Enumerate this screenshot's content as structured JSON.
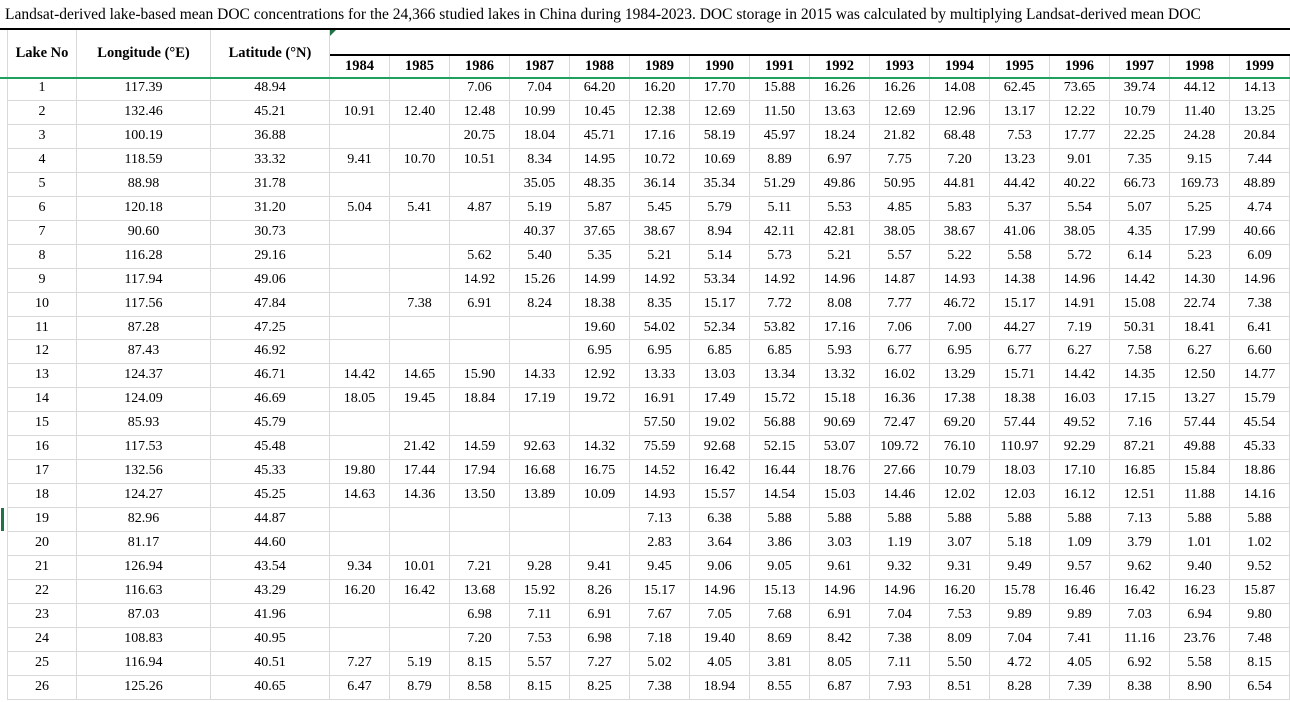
{
  "caption": "Landsat-derived lake-based mean DOC concentrations for the 24,366 studied lakes in China during 1984-2023. DOC storage in 2015 was calculated by multiplying Landsat-derived mean DOC",
  "columns": {
    "lake_no": "Lake No",
    "longitude": "Longitude (°E)",
    "latitude": "Latitude (°N)"
  },
  "years": [
    "1984",
    "1985",
    "1986",
    "1987",
    "1988",
    "1989",
    "1990",
    "1991",
    "1992",
    "1993",
    "1994",
    "1995",
    "1996",
    "1997",
    "1998",
    "1999"
  ],
  "marked_row_no": "19",
  "colors": {
    "header_separator_green": "#1FA05F",
    "row_marker_green": "#217346",
    "corner_flag_green": "#217346",
    "grid_line": "#D9D9D9",
    "rule_black": "#000000"
  },
  "rows": [
    {
      "no": "1",
      "lon": "117.39",
      "lat": "48.94",
      "values": [
        "",
        "",
        "7.06",
        "7.04",
        "64.20",
        "16.20",
        "17.70",
        "15.88",
        "16.26",
        "16.26",
        "14.08",
        "62.45",
        "73.65",
        "39.74",
        "44.12",
        "14.13"
      ]
    },
    {
      "no": "2",
      "lon": "132.46",
      "lat": "45.21",
      "values": [
        "10.91",
        "12.40",
        "12.48",
        "10.99",
        "10.45",
        "12.38",
        "12.69",
        "11.50",
        "13.63",
        "12.69",
        "12.96",
        "13.17",
        "12.22",
        "10.79",
        "11.40",
        "13.25"
      ]
    },
    {
      "no": "3",
      "lon": "100.19",
      "lat": "36.88",
      "values": [
        "",
        "",
        "20.75",
        "18.04",
        "45.71",
        "17.16",
        "58.19",
        "45.97",
        "18.24",
        "21.82",
        "68.48",
        "7.53",
        "17.77",
        "22.25",
        "24.28",
        "20.84"
      ]
    },
    {
      "no": "4",
      "lon": "118.59",
      "lat": "33.32",
      "values": [
        "9.41",
        "10.70",
        "10.51",
        "8.34",
        "14.95",
        "10.72",
        "10.69",
        "8.89",
        "6.97",
        "7.75",
        "7.20",
        "13.23",
        "9.01",
        "7.35",
        "9.15",
        "7.44"
      ]
    },
    {
      "no": "5",
      "lon": "88.98",
      "lat": "31.78",
      "values": [
        "",
        "",
        "",
        "35.05",
        "48.35",
        "36.14",
        "35.34",
        "51.29",
        "49.86",
        "50.95",
        "44.81",
        "44.42",
        "40.22",
        "66.73",
        "169.73",
        "48.89"
      ]
    },
    {
      "no": "6",
      "lon": "120.18",
      "lat": "31.20",
      "values": [
        "5.04",
        "5.41",
        "4.87",
        "5.19",
        "5.87",
        "5.45",
        "5.79",
        "5.11",
        "5.53",
        "4.85",
        "5.83",
        "5.37",
        "5.54",
        "5.07",
        "5.25",
        "4.74"
      ]
    },
    {
      "no": "7",
      "lon": "90.60",
      "lat": "30.73",
      "values": [
        "",
        "",
        "",
        "40.37",
        "37.65",
        "38.67",
        "8.94",
        "42.11",
        "42.81",
        "38.05",
        "38.67",
        "41.06",
        "38.05",
        "4.35",
        "17.99",
        "40.66"
      ]
    },
    {
      "no": "8",
      "lon": "116.28",
      "lat": "29.16",
      "values": [
        "",
        "",
        "5.62",
        "5.40",
        "5.35",
        "5.21",
        "5.14",
        "5.73",
        "5.21",
        "5.57",
        "5.22",
        "5.58",
        "5.72",
        "6.14",
        "5.23",
        "6.09"
      ]
    },
    {
      "no": "9",
      "lon": "117.94",
      "lat": "49.06",
      "values": [
        "",
        "",
        "14.92",
        "15.26",
        "14.99",
        "14.92",
        "53.34",
        "14.92",
        "14.96",
        "14.87",
        "14.93",
        "14.38",
        "14.96",
        "14.42",
        "14.30",
        "14.96"
      ]
    },
    {
      "no": "10",
      "lon": "117.56",
      "lat": "47.84",
      "values": [
        "",
        "7.38",
        "6.91",
        "8.24",
        "18.38",
        "8.35",
        "15.17",
        "7.72",
        "8.08",
        "7.77",
        "46.72",
        "15.17",
        "14.91",
        "15.08",
        "22.74",
        "7.38"
      ]
    },
    {
      "no": "11",
      "lon": "87.28",
      "lat": "47.25",
      "values": [
        "",
        "",
        "",
        "",
        "19.60",
        "54.02",
        "52.34",
        "53.82",
        "17.16",
        "7.06",
        "7.00",
        "44.27",
        "7.19",
        "50.31",
        "18.41",
        "6.41"
      ]
    },
    {
      "no": "12",
      "lon": "87.43",
      "lat": "46.92",
      "values": [
        "",
        "",
        "",
        "",
        "6.95",
        "6.95",
        "6.85",
        "6.85",
        "5.93",
        "6.77",
        "6.95",
        "6.77",
        "6.27",
        "7.58",
        "6.27",
        "6.60"
      ]
    },
    {
      "no": "13",
      "lon": "124.37",
      "lat": "46.71",
      "values": [
        "14.42",
        "14.65",
        "15.90",
        "14.33",
        "12.92",
        "13.33",
        "13.03",
        "13.34",
        "13.32",
        "16.02",
        "13.29",
        "15.71",
        "14.42",
        "14.35",
        "12.50",
        "14.77"
      ]
    },
    {
      "no": "14",
      "lon": "124.09",
      "lat": "46.69",
      "values": [
        "18.05",
        "19.45",
        "18.84",
        "17.19",
        "19.72",
        "16.91",
        "17.49",
        "15.72",
        "15.18",
        "16.36",
        "17.38",
        "18.38",
        "16.03",
        "17.15",
        "13.27",
        "15.79"
      ]
    },
    {
      "no": "15",
      "lon": "85.93",
      "lat": "45.79",
      "values": [
        "",
        "",
        "",
        "",
        "",
        "57.50",
        "19.02",
        "56.88",
        "90.69",
        "72.47",
        "69.20",
        "57.44",
        "49.52",
        "7.16",
        "57.44",
        "45.54"
      ]
    },
    {
      "no": "16",
      "lon": "117.53",
      "lat": "45.48",
      "values": [
        "",
        "21.42",
        "14.59",
        "92.63",
        "14.32",
        "75.59",
        "92.68",
        "52.15",
        "53.07",
        "109.72",
        "76.10",
        "110.97",
        "92.29",
        "87.21",
        "49.88",
        "45.33"
      ]
    },
    {
      "no": "17",
      "lon": "132.56",
      "lat": "45.33",
      "values": [
        "19.80",
        "17.44",
        "17.94",
        "16.68",
        "16.75",
        "14.52",
        "16.42",
        "16.44",
        "18.76",
        "27.66",
        "10.79",
        "18.03",
        "17.10",
        "16.85",
        "15.84",
        "18.86"
      ]
    },
    {
      "no": "18",
      "lon": "124.27",
      "lat": "45.25",
      "values": [
        "14.63",
        "14.36",
        "13.50",
        "13.89",
        "10.09",
        "14.93",
        "15.57",
        "14.54",
        "15.03",
        "14.46",
        "12.02",
        "12.03",
        "16.12",
        "12.51",
        "11.88",
        "14.16"
      ]
    },
    {
      "no": "19",
      "lon": "82.96",
      "lat": "44.87",
      "values": [
        "",
        "",
        "",
        "",
        "",
        "7.13",
        "6.38",
        "5.88",
        "5.88",
        "5.88",
        "5.88",
        "5.88",
        "5.88",
        "7.13",
        "5.88",
        "5.88"
      ]
    },
    {
      "no": "20",
      "lon": "81.17",
      "lat": "44.60",
      "values": [
        "",
        "",
        "",
        "",
        "",
        "2.83",
        "3.64",
        "3.86",
        "3.03",
        "1.19",
        "3.07",
        "5.18",
        "1.09",
        "3.79",
        "1.01",
        "1.02"
      ]
    },
    {
      "no": "21",
      "lon": "126.94",
      "lat": "43.54",
      "values": [
        "9.34",
        "10.01",
        "7.21",
        "9.28",
        "9.41",
        "9.45",
        "9.06",
        "9.05",
        "9.61",
        "9.32",
        "9.31",
        "9.49",
        "9.57",
        "9.62",
        "9.40",
        "9.52"
      ]
    },
    {
      "no": "22",
      "lon": "116.63",
      "lat": "43.29",
      "values": [
        "16.20",
        "16.42",
        "13.68",
        "15.92",
        "8.26",
        "15.17",
        "14.96",
        "15.13",
        "14.96",
        "14.96",
        "16.20",
        "15.78",
        "16.46",
        "16.42",
        "16.23",
        "15.87"
      ]
    },
    {
      "no": "23",
      "lon": "87.03",
      "lat": "41.96",
      "values": [
        "",
        "",
        "6.98",
        "7.11",
        "6.91",
        "7.67",
        "7.05",
        "7.68",
        "6.91",
        "7.04",
        "7.53",
        "9.89",
        "9.89",
        "7.03",
        "6.94",
        "9.80"
      ]
    },
    {
      "no": "24",
      "lon": "108.83",
      "lat": "40.95",
      "values": [
        "",
        "",
        "7.20",
        "7.53",
        "6.98",
        "7.18",
        "19.40",
        "8.69",
        "8.42",
        "7.38",
        "8.09",
        "7.04",
        "7.41",
        "11.16",
        "23.76",
        "7.48"
      ]
    },
    {
      "no": "25",
      "lon": "116.94",
      "lat": "40.51",
      "values": [
        "7.27",
        "5.19",
        "8.15",
        "5.57",
        "7.27",
        "5.02",
        "4.05",
        "3.81",
        "8.05",
        "7.11",
        "5.50",
        "4.72",
        "4.05",
        "6.92",
        "5.58",
        "8.15"
      ]
    },
    {
      "no": "26",
      "lon": "125.26",
      "lat": "40.65",
      "values": [
        "6.47",
        "8.79",
        "8.58",
        "8.15",
        "8.25",
        "7.38",
        "18.94",
        "8.55",
        "6.87",
        "7.93",
        "8.51",
        "8.28",
        "7.39",
        "8.38",
        "8.90",
        "6.54"
      ]
    }
  ]
}
